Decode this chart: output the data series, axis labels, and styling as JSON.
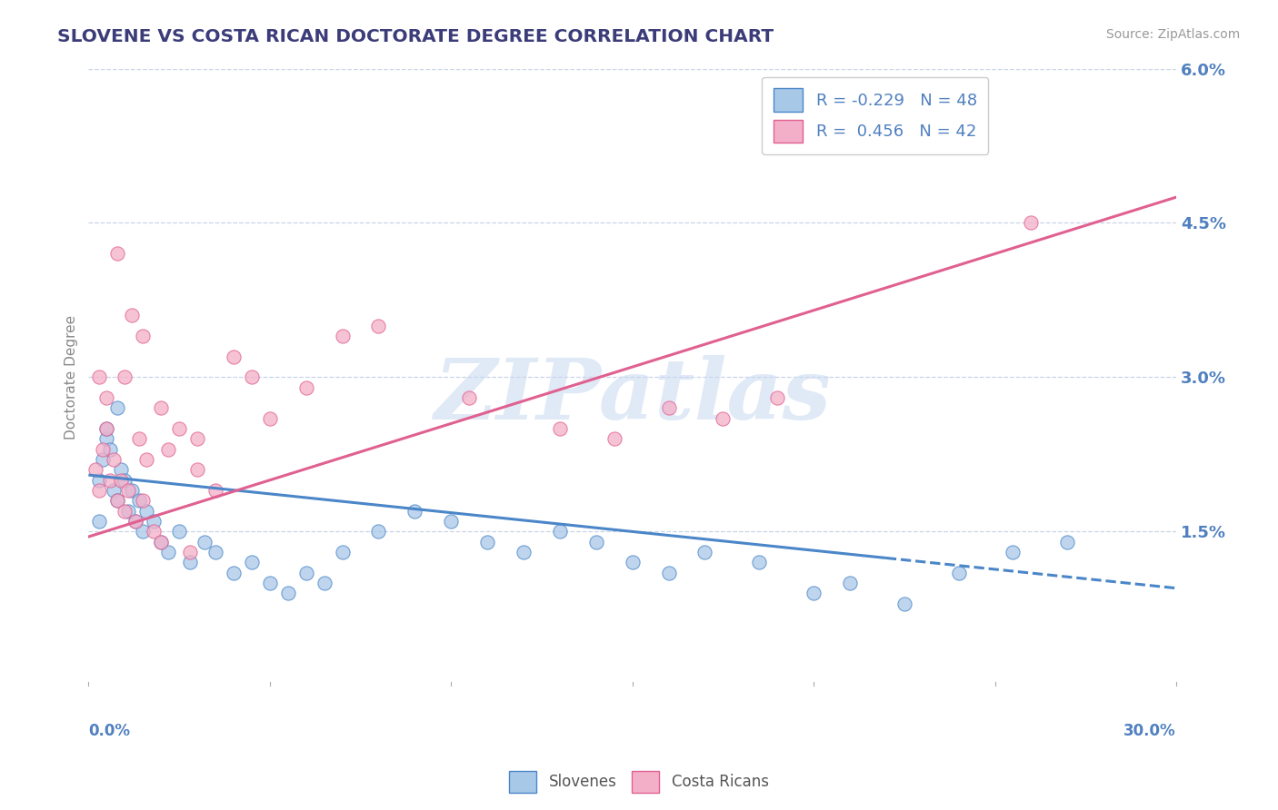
{
  "title": "SLOVENE VS COSTA RICAN DOCTORATE DEGREE CORRELATION CHART",
  "source": "Source: ZipAtlas.com",
  "ylabel": "Doctorate Degree",
  "xlim": [
    0.0,
    30.0
  ],
  "ylim": [
    0.0,
    6.0
  ],
  "ytick_values": [
    1.5,
    3.0,
    4.5,
    6.0
  ],
  "xtick_values": [
    0.0,
    5.0,
    10.0,
    15.0,
    20.0,
    25.0,
    30.0
  ],
  "blue_color": "#a8c8e8",
  "pink_color": "#f4afc8",
  "blue_line_color": "#4a86c8",
  "pink_line_color": "#e06090",
  "legend_blue_label": "R = -0.229   N = 48",
  "legend_pink_label": "R =  0.456   N = 42",
  "blue_line_x1": 0.0,
  "blue_line_y1": 2.05,
  "blue_line_x2": 30.0,
  "blue_line_y2": 0.95,
  "blue_line_solid_end": 22.0,
  "pink_line_x1": 0.0,
  "pink_line_y1": 1.45,
  "pink_line_x2": 30.0,
  "pink_line_y2": 4.75,
  "watermark_text": "ZIPatlas",
  "background_color": "#ffffff",
  "grid_color": "#c8d4e8",
  "title_color": "#3c3c7a",
  "axis_label_color": "#5080c0",
  "legend_text_color": "#5080c0",
  "blue_x": [
    0.3,
    0.4,
    0.5,
    0.6,
    0.7,
    0.8,
    0.9,
    1.0,
    1.1,
    1.2,
    1.3,
    1.4,
    1.5,
    1.6,
    1.8,
    2.0,
    2.2,
    2.5,
    2.8,
    3.2,
    3.5,
    4.0,
    4.5,
    5.0,
    5.5,
    6.0,
    6.5,
    7.0,
    8.0,
    9.0,
    10.0,
    11.0,
    12.0,
    13.0,
    14.0,
    15.0,
    16.0,
    17.0,
    18.5,
    20.0,
    21.0,
    22.5,
    24.0,
    25.5,
    27.0,
    0.3,
    0.5,
    0.8
  ],
  "blue_y": [
    2.0,
    2.2,
    2.4,
    2.3,
    1.9,
    1.8,
    2.1,
    2.0,
    1.7,
    1.9,
    1.6,
    1.8,
    1.5,
    1.7,
    1.6,
    1.4,
    1.3,
    1.5,
    1.2,
    1.4,
    1.3,
    1.1,
    1.2,
    1.0,
    0.9,
    1.1,
    1.0,
    1.3,
    1.5,
    1.7,
    1.6,
    1.4,
    1.3,
    1.5,
    1.4,
    1.2,
    1.1,
    1.3,
    1.2,
    0.9,
    1.0,
    0.8,
    1.1,
    1.3,
    1.4,
    1.6,
    2.5,
    2.7
  ],
  "pink_x": [
    0.2,
    0.3,
    0.4,
    0.5,
    0.6,
    0.7,
    0.8,
    0.9,
    1.0,
    1.1,
    1.2,
    1.3,
    1.4,
    1.5,
    1.6,
    1.8,
    2.0,
    2.2,
    2.5,
    2.8,
    3.0,
    3.5,
    4.0,
    5.0,
    6.0,
    7.0,
    8.0,
    10.5,
    13.0,
    14.5,
    16.0,
    17.5,
    19.0,
    26.0,
    0.3,
    0.5,
    0.8,
    1.0,
    1.5,
    2.0,
    3.0,
    4.5
  ],
  "pink_y": [
    2.1,
    1.9,
    2.3,
    2.5,
    2.0,
    2.2,
    1.8,
    2.0,
    1.7,
    1.9,
    3.6,
    1.6,
    2.4,
    1.8,
    2.2,
    1.5,
    1.4,
    2.3,
    2.5,
    1.3,
    2.1,
    1.9,
    3.2,
    2.6,
    2.9,
    3.4,
    3.5,
    2.8,
    2.5,
    2.4,
    2.7,
    2.6,
    2.8,
    4.5,
    3.0,
    2.8,
    4.2,
    3.0,
    3.4,
    2.7,
    2.4,
    3.0
  ]
}
